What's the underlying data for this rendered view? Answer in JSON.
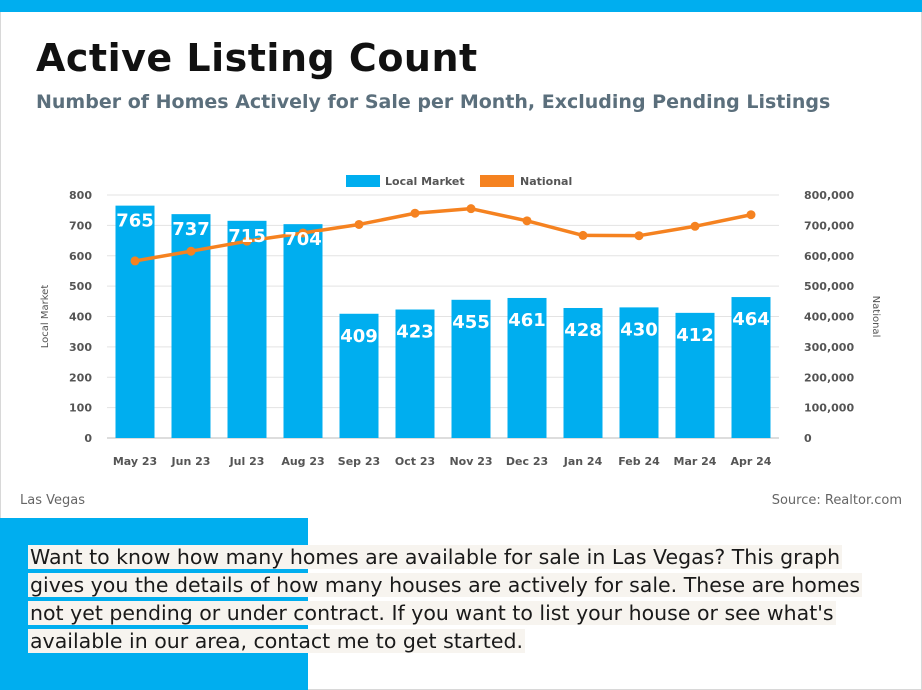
{
  "header": {
    "title": "Active Listing Count",
    "subtitle": "Number of Homes Actively for Sale per Month, Excluding Pending Listings"
  },
  "footer": {
    "location": "Las Vegas",
    "source": "Source: Realtor.com"
  },
  "description": "Want to know how many homes are available for sale in Las Vegas? This graph gives you the details of how many houses are actively for sale. These are homes not yet pending or under contract. If you want to list your house or see what's available in our area, contact me to get started.",
  "colors": {
    "accent": "#00aeef",
    "local_market": "#00aeef",
    "national": "#f58220"
  },
  "chart_data": {
    "type": "bar",
    "categories": [
      "May 23",
      "Jun 23",
      "Jul 23",
      "Aug 23",
      "Sep 23",
      "Oct 23",
      "Nov 23",
      "Dec 23",
      "Jan 24",
      "Feb 24",
      "Mar 24",
      "Apr 24"
    ],
    "series": [
      {
        "name": "Local Market",
        "type": "bar",
        "axis": "left",
        "values": [
          765,
          737,
          715,
          704,
          409,
          423,
          455,
          461,
          428,
          430,
          412,
          464
        ]
      },
      {
        "name": "National",
        "type": "line",
        "axis": "right",
        "values": [
          583000,
          615000,
          648000,
          675000,
          703000,
          740000,
          755000,
          715000,
          667000,
          666000,
          697000,
          735000
        ]
      }
    ],
    "ylabel": "Local Market",
    "ylabel_right": "National",
    "ylim": [
      0,
      800
    ],
    "yticks": [
      "0",
      "100",
      "200",
      "300",
      "400",
      "500",
      "600",
      "700",
      "800"
    ],
    "ylim_right": [
      0,
      800000
    ],
    "yticks_right": [
      "0",
      "100,000",
      "200,000",
      "300,000",
      "400,000",
      "500,000",
      "600,000",
      "700,000",
      "800,000"
    ],
    "grid": true,
    "legend_position": "top-center"
  }
}
